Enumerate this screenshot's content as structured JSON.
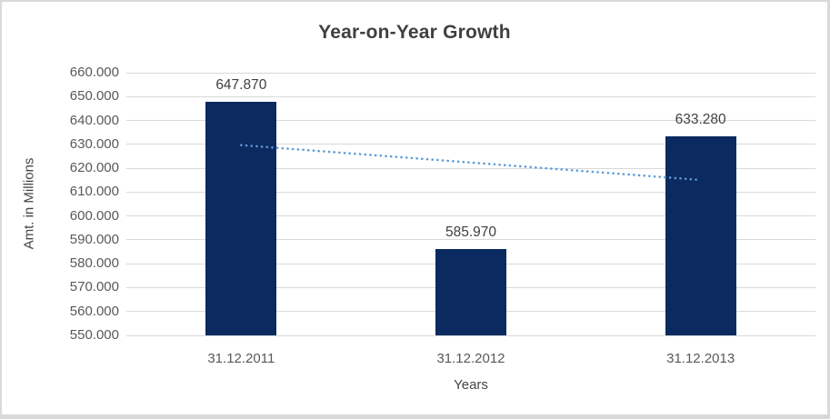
{
  "chart_data": {
    "type": "bar",
    "title": "Year-on-Year Growth",
    "categories": [
      "31.12.2011",
      "31.12.2012",
      "31.12.2013"
    ],
    "values": [
      647.87,
      585.97,
      633.28
    ],
    "value_labels": [
      "647.870",
      "585.970",
      "633.280"
    ],
    "xlabel": "Years",
    "ylabel": "Amt. in Millions",
    "ylim": [
      550,
      660
    ],
    "ytick_step": 10,
    "ytick_labels": [
      "660.000",
      "650.000",
      "640.000",
      "630.000",
      "620.000",
      "610.000",
      "600.000",
      "590.000",
      "580.000",
      "570.000",
      "560.000",
      "550.000"
    ],
    "grid": true,
    "legend": "none",
    "trendline": {
      "type": "linear",
      "style": "dotted",
      "start_value": 629.67,
      "end_value": 615.08,
      "color": "#5b9bd5"
    },
    "colors": {
      "bar": "#0b2a5f",
      "title": "#404040",
      "tick_label": "#595959",
      "axis_title": "#454545",
      "gridline": "#d9d9d9",
      "data_label": "#404040",
      "border": "#d9d9d9",
      "background": "#ffffff"
    }
  }
}
